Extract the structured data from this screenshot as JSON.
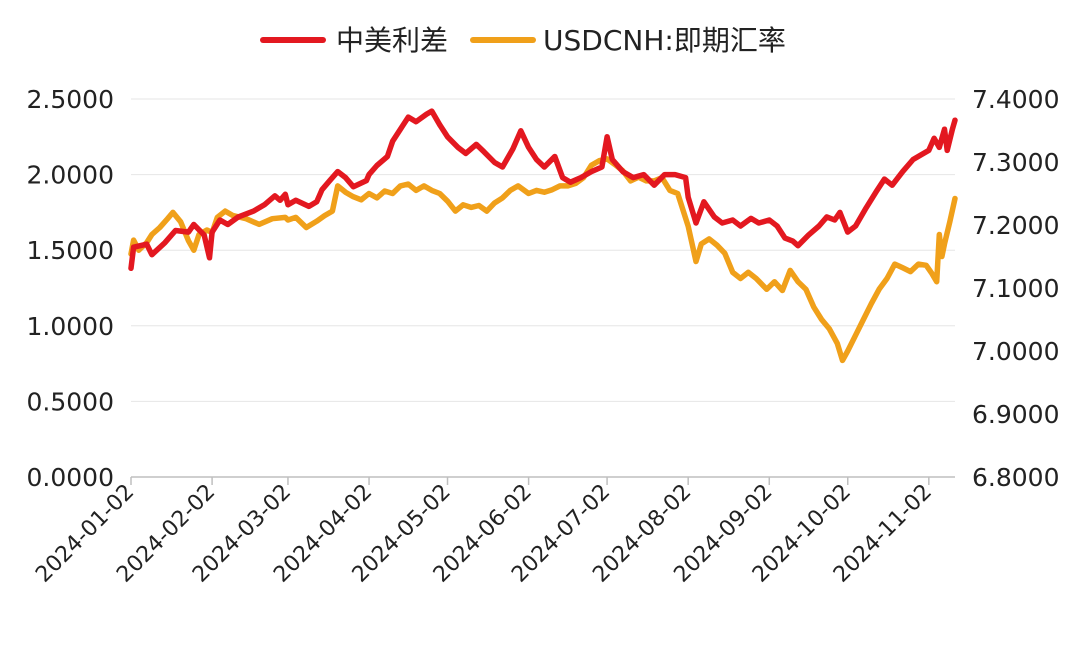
{
  "chart_data": {
    "type": "line",
    "x_axis": {
      "type": "date",
      "range": [
        "2024-01-02",
        "2024-11-12"
      ],
      "tick_labels": [
        "2024-01-02",
        "2024-02-02",
        "2024-03-02",
        "2024-04-02",
        "2024-05-02",
        "2024-06-02",
        "2024-07-02",
        "2024-08-02",
        "2024-09-02",
        "2024-10-02",
        "2024-11-02"
      ]
    },
    "y_left": {
      "range": [
        0,
        2.5
      ],
      "tick_labels": [
        "0.0000",
        "0.5000",
        "1.0000",
        "1.5000",
        "2.0000",
        "2.5000"
      ]
    },
    "y_right": {
      "range": [
        6.8,
        7.4
      ],
      "tick_labels": [
        "6.8000",
        "6.9000",
        "7.0000",
        "7.1000",
        "7.2000",
        "7.3000",
        "7.4000"
      ]
    },
    "grid": "horizontal",
    "legend": {
      "position": "top-center",
      "entries": [
        "中美利差",
        "USDCNH:即期汇率"
      ]
    },
    "series": [
      {
        "name": "中美利差",
        "axis": "left",
        "color": "#e31820",
        "points": [
          [
            "2024-01-02",
            1.38
          ],
          [
            "2024-01-03",
            1.52
          ],
          [
            "2024-01-08",
            1.54
          ],
          [
            "2024-01-10",
            1.47
          ],
          [
            "2024-01-15",
            1.55
          ],
          [
            "2024-01-19",
            1.63
          ],
          [
            "2024-01-24",
            1.62
          ],
          [
            "2024-01-26",
            1.67
          ],
          [
            "2024-01-30",
            1.6
          ],
          [
            "2024-02-01",
            1.45
          ],
          [
            "2024-02-02",
            1.62
          ],
          [
            "2024-02-05",
            1.7
          ],
          [
            "2024-02-08",
            1.67
          ],
          [
            "2024-02-12",
            1.72
          ],
          [
            "2024-02-18",
            1.76
          ],
          [
            "2024-02-22",
            1.8
          ],
          [
            "2024-02-26",
            1.86
          ],
          [
            "2024-02-28",
            1.83
          ],
          [
            "2024-03-01",
            1.87
          ],
          [
            "2024-03-02",
            1.8
          ],
          [
            "2024-03-05",
            1.83
          ],
          [
            "2024-03-10",
            1.79
          ],
          [
            "2024-03-13",
            1.82
          ],
          [
            "2024-03-15",
            1.9
          ],
          [
            "2024-03-18",
            1.96
          ],
          [
            "2024-03-21",
            2.02
          ],
          [
            "2024-03-24",
            1.98
          ],
          [
            "2024-03-27",
            1.92
          ],
          [
            "2024-04-01",
            1.96
          ],
          [
            "2024-04-02",
            2.0
          ],
          [
            "2024-04-05",
            2.06
          ],
          [
            "2024-04-09",
            2.12
          ],
          [
            "2024-04-11",
            2.22
          ],
          [
            "2024-04-14",
            2.3
          ],
          [
            "2024-04-17",
            2.38
          ],
          [
            "2024-04-20",
            2.35
          ],
          [
            "2024-04-24",
            2.4
          ],
          [
            "2024-04-26",
            2.42
          ],
          [
            "2024-04-29",
            2.33
          ],
          [
            "2024-05-02",
            2.25
          ],
          [
            "2024-05-06",
            2.18
          ],
          [
            "2024-05-09",
            2.14
          ],
          [
            "2024-05-13",
            2.2
          ],
          [
            "2024-05-16",
            2.15
          ],
          [
            "2024-05-20",
            2.08
          ],
          [
            "2024-05-23",
            2.05
          ],
          [
            "2024-05-27",
            2.17
          ],
          [
            "2024-05-30",
            2.29
          ],
          [
            "2024-06-02",
            2.18
          ],
          [
            "2024-06-05",
            2.1
          ],
          [
            "2024-06-08",
            2.05
          ],
          [
            "2024-06-12",
            2.12
          ],
          [
            "2024-06-15",
            1.98
          ],
          [
            "2024-06-18",
            1.95
          ],
          [
            "2024-06-22",
            1.98
          ],
          [
            "2024-06-26",
            2.02
          ],
          [
            "2024-06-30",
            2.05
          ],
          [
            "2024-07-02",
            2.25
          ],
          [
            "2024-07-04",
            2.1
          ],
          [
            "2024-07-08",
            2.02
          ],
          [
            "2024-07-12",
            1.98
          ],
          [
            "2024-07-16",
            2.0
          ],
          [
            "2024-07-20",
            1.93
          ],
          [
            "2024-07-24",
            2.0
          ],
          [
            "2024-07-28",
            2.0
          ],
          [
            "2024-08-01",
            1.98
          ],
          [
            "2024-08-02",
            1.85
          ],
          [
            "2024-08-05",
            1.68
          ],
          [
            "2024-08-08",
            1.82
          ],
          [
            "2024-08-12",
            1.72
          ],
          [
            "2024-08-15",
            1.68
          ],
          [
            "2024-08-19",
            1.7
          ],
          [
            "2024-08-22",
            1.66
          ],
          [
            "2024-08-26",
            1.71
          ],
          [
            "2024-08-29",
            1.68
          ],
          [
            "2024-09-02",
            1.7
          ],
          [
            "2024-09-05",
            1.66
          ],
          [
            "2024-09-08",
            1.58
          ],
          [
            "2024-09-11",
            1.56
          ],
          [
            "2024-09-13",
            1.53
          ],
          [
            "2024-09-17",
            1.6
          ],
          [
            "2024-09-21",
            1.66
          ],
          [
            "2024-09-24",
            1.72
          ],
          [
            "2024-09-27",
            1.7
          ],
          [
            "2024-09-29",
            1.75
          ],
          [
            "2024-10-02",
            1.62
          ],
          [
            "2024-10-05",
            1.66
          ],
          [
            "2024-10-09",
            1.78
          ],
          [
            "2024-10-13",
            1.89
          ],
          [
            "2024-10-16",
            1.97
          ],
          [
            "2024-10-19",
            1.93
          ],
          [
            "2024-10-23",
            2.02
          ],
          [
            "2024-10-27",
            2.1
          ],
          [
            "2024-10-30",
            2.13
          ],
          [
            "2024-11-02",
            2.16
          ],
          [
            "2024-11-04",
            2.24
          ],
          [
            "2024-11-06",
            2.18
          ],
          [
            "2024-11-08",
            2.3
          ],
          [
            "2024-11-09",
            2.16
          ],
          [
            "2024-11-11",
            2.3
          ],
          [
            "2024-11-12",
            2.36
          ]
        ]
      },
      {
        "name": "USDCNH:即期汇率",
        "axis": "right",
        "color": "#f0a01a",
        "points": [
          [
            "2024-01-02",
            7.154
          ],
          [
            "2024-01-03",
            7.176
          ],
          [
            "2024-01-05",
            7.16
          ],
          [
            "2024-01-08",
            7.172
          ],
          [
            "2024-01-10",
            7.185
          ],
          [
            "2024-01-13",
            7.196
          ],
          [
            "2024-01-16",
            7.21
          ],
          [
            "2024-01-18",
            7.22
          ],
          [
            "2024-01-21",
            7.205
          ],
          [
            "2024-01-24",
            7.175
          ],
          [
            "2024-01-26",
            7.16
          ],
          [
            "2024-01-28",
            7.185
          ],
          [
            "2024-01-31",
            7.192
          ],
          [
            "2024-02-02",
            7.188
          ],
          [
            "2024-02-04",
            7.212
          ],
          [
            "2024-02-07",
            7.222
          ],
          [
            "2024-02-10",
            7.215
          ],
          [
            "2024-02-15",
            7.21
          ],
          [
            "2024-02-20",
            7.201
          ],
          [
            "2024-02-25",
            7.21
          ],
          [
            "2024-03-01",
            7.212
          ],
          [
            "2024-03-02",
            7.208
          ],
          [
            "2024-03-05",
            7.212
          ],
          [
            "2024-03-09",
            7.196
          ],
          [
            "2024-03-13",
            7.206
          ],
          [
            "2024-03-16",
            7.215
          ],
          [
            "2024-03-19",
            7.222
          ],
          [
            "2024-03-21",
            7.262
          ],
          [
            "2024-03-24",
            7.252
          ],
          [
            "2024-03-27",
            7.245
          ],
          [
            "2024-03-30",
            7.24
          ],
          [
            "2024-04-02",
            7.25
          ],
          [
            "2024-04-05",
            7.243
          ],
          [
            "2024-04-08",
            7.254
          ],
          [
            "2024-04-11",
            7.25
          ],
          [
            "2024-04-14",
            7.262
          ],
          [
            "2024-04-17",
            7.265
          ],
          [
            "2024-04-20",
            7.255
          ],
          [
            "2024-04-23",
            7.262
          ],
          [
            "2024-04-26",
            7.255
          ],
          [
            "2024-04-29",
            7.25
          ],
          [
            "2024-05-02",
            7.238
          ],
          [
            "2024-05-05",
            7.222
          ],
          [
            "2024-05-08",
            7.232
          ],
          [
            "2024-05-11",
            7.228
          ],
          [
            "2024-05-14",
            7.231
          ],
          [
            "2024-05-17",
            7.222
          ],
          [
            "2024-05-20",
            7.235
          ],
          [
            "2024-05-23",
            7.243
          ],
          [
            "2024-05-26",
            7.255
          ],
          [
            "2024-05-29",
            7.262
          ],
          [
            "2024-06-02",
            7.25
          ],
          [
            "2024-06-05",
            7.255
          ],
          [
            "2024-06-08",
            7.252
          ],
          [
            "2024-06-11",
            7.256
          ],
          [
            "2024-06-14",
            7.262
          ],
          [
            "2024-06-17",
            7.262
          ],
          [
            "2024-06-20",
            7.266
          ],
          [
            "2024-06-23",
            7.275
          ],
          [
            "2024-06-26",
            7.295
          ],
          [
            "2024-06-29",
            7.302
          ],
          [
            "2024-07-02",
            7.305
          ],
          [
            "2024-07-05",
            7.296
          ],
          [
            "2024-07-08",
            7.286
          ],
          [
            "2024-07-11",
            7.27
          ],
          [
            "2024-07-14",
            7.276
          ],
          [
            "2024-07-17",
            7.27
          ],
          [
            "2024-07-20",
            7.27
          ],
          [
            "2024-07-23",
            7.275
          ],
          [
            "2024-07-26",
            7.255
          ],
          [
            "2024-07-29",
            7.25
          ],
          [
            "2024-08-02",
            7.198
          ],
          [
            "2024-08-05",
            7.142
          ],
          [
            "2024-08-07",
            7.17
          ],
          [
            "2024-08-10",
            7.178
          ],
          [
            "2024-08-13",
            7.168
          ],
          [
            "2024-08-16",
            7.155
          ],
          [
            "2024-08-19",
            7.125
          ],
          [
            "2024-08-22",
            7.115
          ],
          [
            "2024-08-25",
            7.125
          ],
          [
            "2024-08-28",
            7.115
          ],
          [
            "2024-09-01",
            7.098
          ],
          [
            "2024-09-04",
            7.11
          ],
          [
            "2024-09-07",
            7.096
          ],
          [
            "2024-09-10",
            7.128
          ],
          [
            "2024-09-13",
            7.11
          ],
          [
            "2024-09-16",
            7.098
          ],
          [
            "2024-09-19",
            7.07
          ],
          [
            "2024-09-22",
            7.05
          ],
          [
            "2024-09-25",
            7.035
          ],
          [
            "2024-09-28",
            7.012
          ],
          [
            "2024-09-30",
            6.985
          ],
          [
            "2024-10-02",
            7.0
          ],
          [
            "2024-10-05",
            7.025
          ],
          [
            "2024-10-08",
            7.05
          ],
          [
            "2024-10-11",
            7.075
          ],
          [
            "2024-10-14",
            7.098
          ],
          [
            "2024-10-17",
            7.115
          ],
          [
            "2024-10-20",
            7.138
          ],
          [
            "2024-10-23",
            7.132
          ],
          [
            "2024-10-26",
            7.126
          ],
          [
            "2024-10-29",
            7.138
          ],
          [
            "2024-11-01",
            7.136
          ],
          [
            "2024-11-03",
            7.124
          ],
          [
            "2024-11-05",
            7.11
          ],
          [
            "2024-11-06",
            7.185
          ],
          [
            "2024-11-07",
            7.15
          ],
          [
            "2024-11-08",
            7.17
          ],
          [
            "2024-11-10",
            7.205
          ],
          [
            "2024-11-12",
            7.242
          ]
        ]
      }
    ]
  }
}
